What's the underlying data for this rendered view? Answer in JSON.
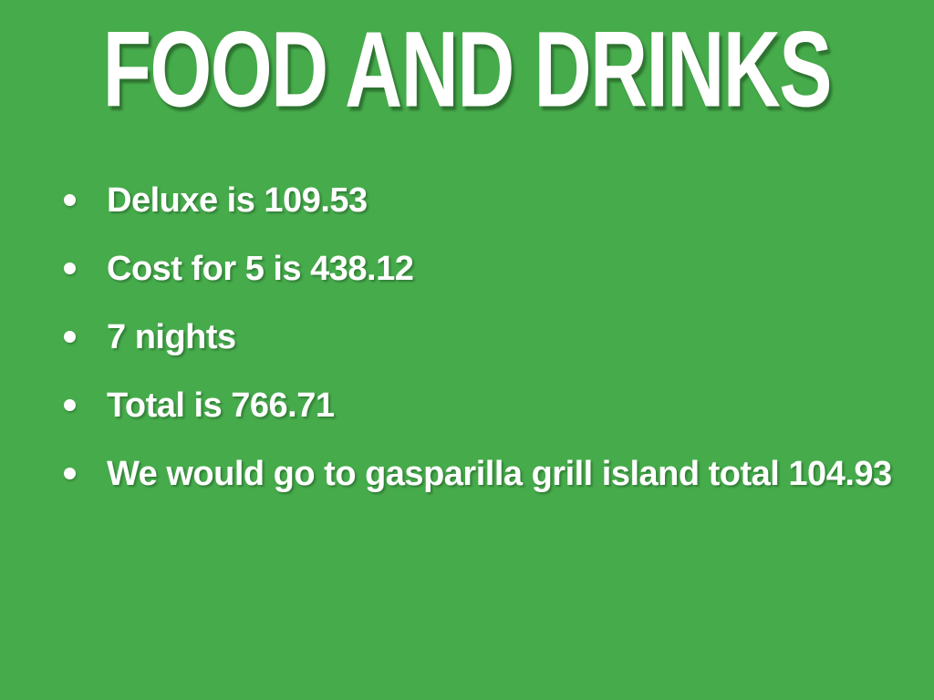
{
  "slide": {
    "title": "FOOD AND DRINKS",
    "bullets": [
      "Deluxe is 109.53",
      "Cost for 5 is 438.12",
      "7 nights",
      "Total is 766.71",
      "We would go to gasparilla grill island total 104.93"
    ],
    "colors": {
      "background": "#46ab4b",
      "text": "#ffffff"
    }
  }
}
